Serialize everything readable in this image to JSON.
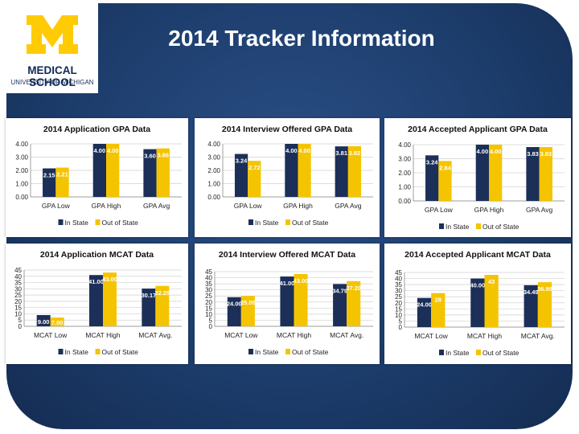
{
  "slide": {
    "title": "2014 Tracker Information",
    "logo": {
      "line1": "MEDICAL SCHOOL",
      "line2": "UNIVERSITY OF MICHIGAN",
      "brand_color": "#ffcb05",
      "navy": "#102a55"
    }
  },
  "colors": {
    "in_state": "#1b2f58",
    "out_of_state": "#f5c400",
    "background": "#1d3d6c"
  },
  "chart_data": [
    {
      "type": "bar",
      "title": "2014 Application GPA Data",
      "categories": [
        "GPA Low",
        "GPA High",
        "GPA Avg"
      ],
      "series": [
        {
          "name": "In State",
          "values": [
            2.15,
            4.0,
            3.6
          ],
          "labels": [
            "2.15",
            "4.00",
            "3.60"
          ]
        },
        {
          "name": "Out of State",
          "values": [
            2.21,
            4.0,
            3.66
          ],
          "labels": [
            "2.21",
            "4.00",
            "3.66"
          ]
        }
      ],
      "ylim": [
        0,
        4
      ],
      "yticks": [
        "0.00",
        "1.00",
        "2.00",
        "3.00",
        "4.00"
      ],
      "legend": "bottom"
    },
    {
      "type": "bar",
      "title": "2014 Interview Offered GPA Data",
      "categories": [
        "GPA Low",
        "GPA High",
        "GPA Avg"
      ],
      "series": [
        {
          "name": "In State",
          "values": [
            3.24,
            4.0,
            3.81
          ],
          "labels": [
            "3.24",
            "4.00",
            "3.81"
          ]
        },
        {
          "name": "Out of State",
          "values": [
            2.72,
            4.0,
            3.82
          ],
          "labels": [
            "2.72",
            "4.00",
            "3.82"
          ]
        }
      ],
      "ylim": [
        0,
        4
      ],
      "yticks": [
        "0.00",
        "1.00",
        "2.00",
        "3.00",
        "4.00"
      ],
      "legend": "bottom"
    },
    {
      "type": "bar",
      "title": "2014 Accepted Applicant GPA Data",
      "categories": [
        "GPA Low",
        "GPA High",
        "GPA Avg"
      ],
      "series": [
        {
          "name": "In State",
          "values": [
            3.24,
            4.0,
            3.83
          ],
          "labels": [
            "3.24",
            "4.00",
            "3.83"
          ]
        },
        {
          "name": "Out of State",
          "values": [
            2.84,
            4.0,
            3.83
          ],
          "labels": [
            "2.84",
            "4.00",
            "3.83"
          ]
        }
      ],
      "ylim": [
        0,
        4
      ],
      "yticks": [
        "0.00",
        "1.00",
        "2.00",
        "3.00",
        "4.00"
      ],
      "legend": "bottom"
    },
    {
      "type": "bar",
      "title": "2014 Application MCAT Data",
      "categories": [
        "MCAT Low",
        "MCAT High",
        "MCAT Avg."
      ],
      "series": [
        {
          "name": "In State",
          "values": [
            9.0,
            41.0,
            30.17
          ],
          "labels": [
            "9.00",
            "41.00",
            "30.17"
          ]
        },
        {
          "name": "Out of State",
          "values": [
            7.0,
            43.0,
            32.29
          ],
          "labels": [
            "7.00",
            "43.00",
            "32.29"
          ]
        }
      ],
      "ylim": [
        0,
        45
      ],
      "yticks": [
        "0",
        "5",
        "10",
        "15",
        "20",
        "25",
        "30",
        "35",
        "40",
        "45"
      ],
      "legend": "bottom"
    },
    {
      "type": "bar",
      "title": "2014 Interview Offered MCAT Data",
      "categories": [
        "MCAT Low",
        "MCAT High",
        "MCAT Avg."
      ],
      "series": [
        {
          "name": "In State",
          "values": [
            24.0,
            41.0,
            34.79
          ],
          "labels": [
            "24.00",
            "41.00",
            "34.79"
          ]
        },
        {
          "name": "Out of State",
          "values": [
            25.0,
            43.0,
            37.2
          ],
          "labels": [
            "25.00",
            "43.00",
            "37.20"
          ]
        }
      ],
      "ylim": [
        0,
        45
      ],
      "yticks": [
        "0",
        "5",
        "10",
        "15",
        "20",
        "25",
        "30",
        "35",
        "40",
        "45"
      ],
      "legend": "bottom"
    },
    {
      "type": "bar",
      "title": "2014 Accepted Applicant MCAT Data",
      "categories": [
        "MCAT Low",
        "MCAT High",
        "MCAT Avg."
      ],
      "series": [
        {
          "name": "In State",
          "values": [
            24.0,
            40.0,
            34.49
          ],
          "labels": [
            "24.00",
            "40.00",
            "34.49"
          ]
        },
        {
          "name": "Out of State",
          "values": [
            28,
            43,
            36.99
          ],
          "labels": [
            "28",
            "43",
            "36.99"
          ]
        }
      ],
      "ylim": [
        0,
        45
      ],
      "yticks": [
        "0",
        "5",
        "10",
        "15",
        "20",
        "25",
        "30",
        "35",
        "40",
        "45"
      ],
      "legend": "bottom"
    }
  ]
}
